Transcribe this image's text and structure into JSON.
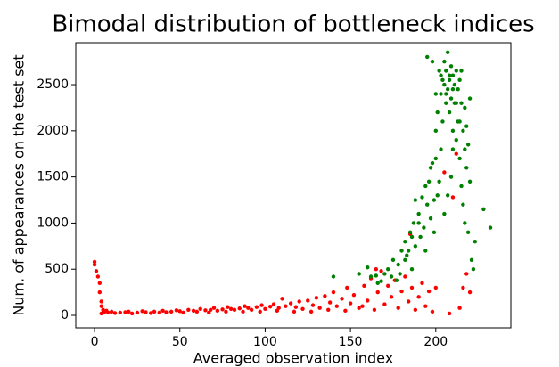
{
  "chart_data": {
    "type": "scatter",
    "title": "Bimodal distribution of bottleneck indices",
    "xlabel": "Averaged observation index",
    "ylabel": "Num. of appearances on the test set",
    "xlim": [
      -11,
      244
    ],
    "ylim": [
      -135,
      2954
    ],
    "xticks": [
      0,
      50,
      100,
      150,
      200
    ],
    "yticks": [
      0,
      500,
      1000,
      1500,
      2000,
      2500
    ],
    "grid": false,
    "series": [
      {
        "color": "#ff0000",
        "x": [
          0,
          0,
          1,
          2,
          3,
          3,
          4,
          4,
          5,
          5,
          4,
          6,
          7,
          8,
          10,
          12,
          15,
          18,
          20,
          22,
          25,
          28,
          30,
          33,
          35,
          38,
          40,
          42,
          45,
          48,
          50,
          52,
          55,
          58,
          60,
          62,
          65,
          68,
          70,
          72,
          75,
          78,
          80,
          82,
          85,
          88,
          90,
          92,
          95,
          98,
          100,
          103,
          105,
          108,
          110,
          112,
          115,
          118,
          120,
          122,
          125,
          128,
          130,
          132,
          135,
          138,
          140,
          142,
          145,
          148,
          150,
          152,
          155,
          158,
          160,
          162,
          164,
          166,
          168,
          170,
          172,
          174,
          176,
          178,
          180,
          182,
          184,
          185,
          186,
          188,
          190,
          192,
          194,
          196,
          198,
          200,
          205,
          208,
          210,
          212,
          214,
          216,
          218,
          220,
          165,
          157,
          147,
          137,
          127,
          117,
          107,
          97,
          87,
          77,
          67
        ],
        "y": [
          580,
          550,
          480,
          420,
          350,
          250,
          150,
          100,
          60,
          30,
          20,
          40,
          50,
          30,
          40,
          25,
          30,
          35,
          40,
          20,
          30,
          45,
          35,
          25,
          40,
          30,
          50,
          35,
          40,
          55,
          45,
          30,
          60,
          50,
          40,
          70,
          55,
          60,
          80,
          50,
          65,
          90,
          70,
          60,
          75,
          100,
          80,
          60,
          90,
          110,
          70,
          95,
          120,
          80,
          180,
          100,
          130,
          90,
          150,
          70,
          160,
          110,
          190,
          80,
          210,
          140,
          250,
          100,
          180,
          300,
          130,
          220,
          80,
          320,
          160,
          400,
          60,
          250,
          480,
          120,
          320,
          200,
          380,
          80,
          260,
          420,
          150,
          880,
          300,
          60,
          200,
          350,
          100,
          260,
          40,
          300,
          1550,
          20,
          1280,
          1750,
          80,
          300,
          450,
          250,
          500,
          100,
          50,
          60,
          40,
          40,
          50,
          40,
          40,
          40,
          30
        ]
      },
      {
        "color": "#008000",
        "x": [
          140,
          155,
          160,
          165,
          168,
          172,
          175,
          178,
          180,
          182,
          183,
          185,
          186,
          187,
          188,
          190,
          191,
          192,
          193,
          194,
          195,
          196,
          197,
          198,
          199,
          200,
          200,
          201,
          202,
          203,
          203,
          204,
          205,
          205,
          206,
          206,
          207,
          207,
          208,
          208,
          209,
          209,
          210,
          210,
          211,
          211,
          212,
          212,
          213,
          213,
          214,
          214,
          215,
          215,
          216,
          216,
          217,
          217,
          218,
          219,
          220,
          221,
          222,
          223,
          228,
          232,
          198,
          195,
          202,
          204,
          206,
          208,
          210,
          212,
          214,
          215,
          217,
          218,
          219,
          220,
          209,
          207,
          205,
          203,
          201,
          199,
          197,
          194,
          190,
          188,
          186,
          184,
          182,
          179,
          177,
          174,
          170,
          166,
          162,
          200,
          210
        ],
        "y": [
          420,
          450,
          520,
          430,
          370,
          500,
          600,
          550,
          700,
          800,
          650,
          900,
          500,
          1000,
          750,
          1100,
          850,
          1280,
          950,
          700,
          1200,
          1450,
          1050,
          1650,
          900,
          2000,
          1700,
          2200,
          1450,
          2400,
          2600,
          2100,
          2500,
          2750,
          2300,
          2650,
          2850,
          2450,
          2200,
          2550,
          2700,
          2350,
          2600,
          2000,
          2500,
          2300,
          2650,
          1900,
          2450,
          2100,
          2550,
          1700,
          2300,
          1400,
          2000,
          1200,
          1800,
          1000,
          1600,
          900,
          1450,
          600,
          500,
          800,
          1150,
          950,
          2750,
          2800,
          2650,
          2550,
          2400,
          2600,
          2450,
          2300,
          2100,
          2650,
          2250,
          2050,
          1850,
          2350,
          1500,
          1300,
          1100,
          1800,
          1300,
          1250,
          1600,
          1400,
          1000,
          1250,
          850,
          700,
          600,
          450,
          380,
          420,
          450,
          350,
          420,
          2400,
          1800
        ]
      }
    ]
  }
}
